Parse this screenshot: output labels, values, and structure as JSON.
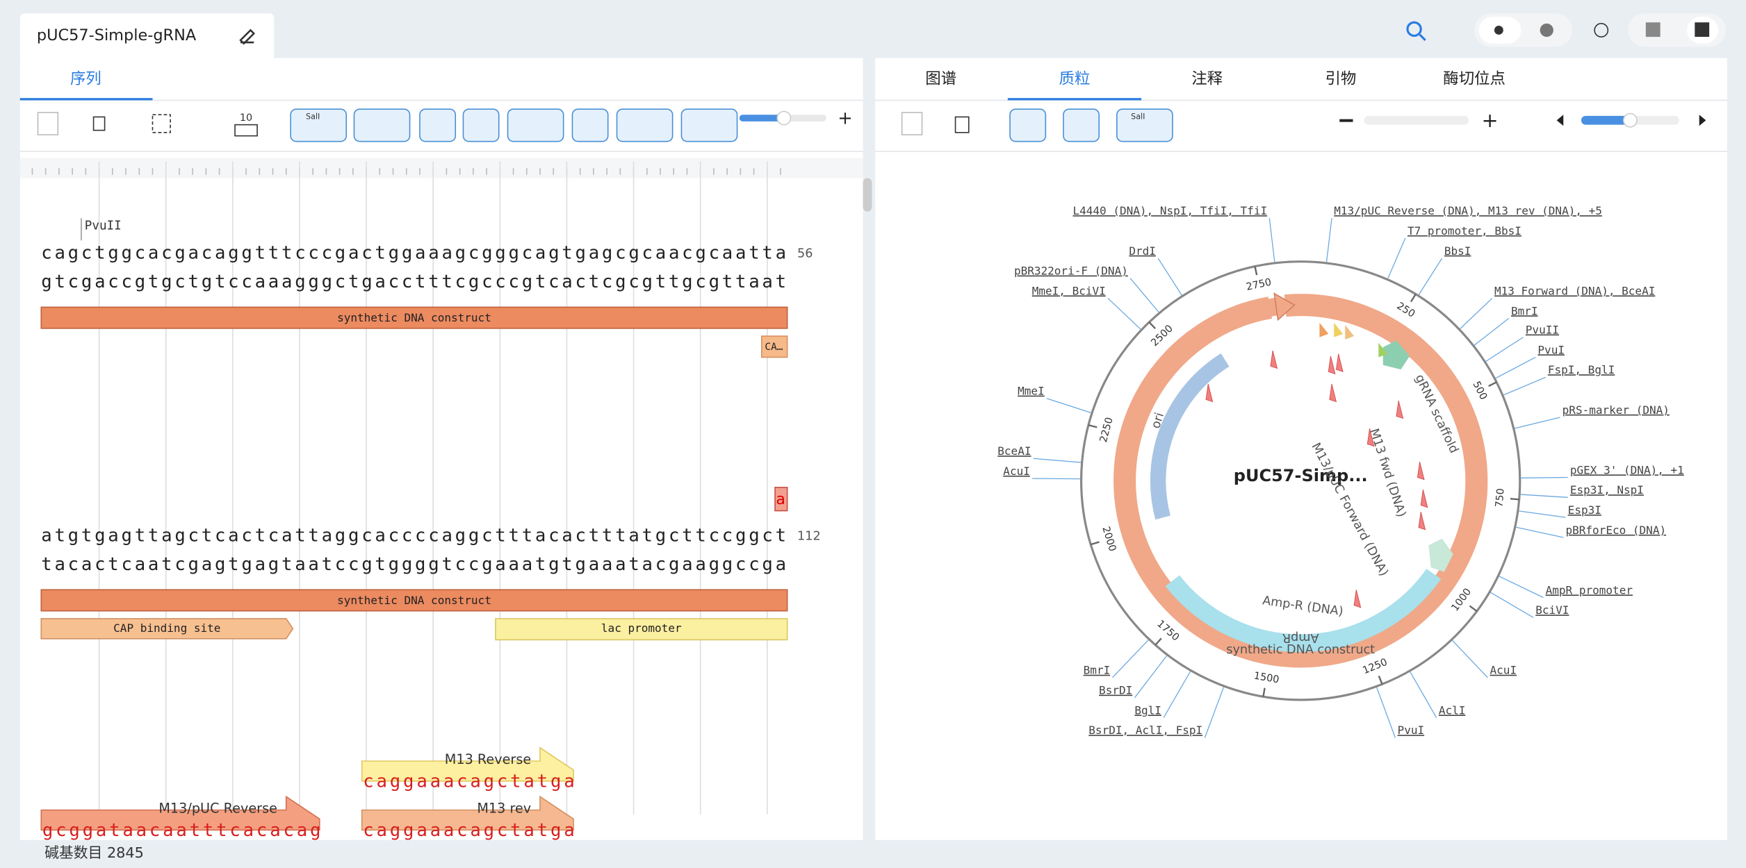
{
  "header": {
    "title": "pUC57-Simple-gRNA"
  },
  "left_tabs": [
    "序列"
  ],
  "right_tabs": [
    "图谱",
    "质粒",
    "注释",
    "引物",
    "酶切位点"
  ],
  "toolbar": {
    "bases_per_row": "10",
    "icons": [
      "SalI",
      "SalI"
    ]
  },
  "sequence": {
    "enzymes": [
      "PvuII"
    ],
    "rows": [
      {
        "top": "cagctggcacgacaggtttcccgactggaaagcgggcagtgagcgcaacgcaatta",
        "bottom": "gtcgaccgtgctgtccaaagggctgacctttcgcccgtcactcgcgttgcgttaat",
        "count": "56",
        "features": [
          "synthetic DNA construct",
          "CA…"
        ]
      },
      {
        "marker": "a",
        "top": "atgtgagttagctcactcattaggcaccccaggctttacactttatgcttccggct",
        "bottom": "tacactcaatcgagtgagtaatccgtggggtccgaaatgtgaaatacgaaggccga",
        "count": "112",
        "features": [
          "synthetic DNA construct",
          "CAP binding site",
          "lac promoter"
        ]
      }
    ],
    "primers": [
      {
        "name": "M13 Reverse",
        "seq": "caggaaacagctatga"
      },
      {
        "name": "M13/pUC Reverse",
        "seq": "gcggataacaatttcacacag"
      },
      {
        "name": "M13 rev",
        "seq": "caggaaacagctatga"
      }
    ]
  },
  "map": {
    "name": "pUC57-Simp...",
    "features": [
      "gRNA scaffold",
      "M13 fwd (DNA)",
      "M13/pUC Forward (DNA)",
      "Amp-R (DNA)",
      "AmpR",
      "synthetic DNA construct",
      "ori"
    ],
    "ticks": [
      250,
      500,
      750,
      1000,
      1250,
      1500,
      1750,
      2000,
      2250,
      2500,
      2750
    ],
    "enzymes": [
      "M13/pUC Reverse (DNA), M13 rev (DNA), +5",
      "T7 promoter, BbsI",
      "BbsI",
      "M13 Forward (DNA), BceAI",
      "BmrI",
      "PvuII",
      "PvuI",
      "FspI, BglI",
      "pRS-marker (DNA)",
      "pGEX 3' (DNA), +1",
      "Esp3I, NspI",
      "Esp3I",
      "pBRforEco (DNA)",
      "AmpR promoter",
      "BciVI",
      "AcuI",
      "AclI",
      "PvuI",
      "L4440 (DNA), NspI, TfiI, TfiI",
      "DrdI",
      "pBR322ori-F (DNA)",
      "MmeI, BciVI",
      "MmeI",
      "BceAI",
      "AcuI",
      "BmrI",
      "BsrDI",
      "BglI",
      "BsrDI, AclI, FspI"
    ]
  },
  "status": "碱基数目 2845"
}
